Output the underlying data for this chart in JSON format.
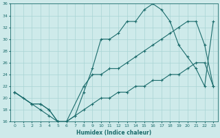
{
  "xlabel": "Humidex (Indice chaleur)",
  "ylabel": "",
  "bg_color": "#ceeaea",
  "grid_color": "#a8d4d4",
  "line_color": "#1a6b6b",
  "xlim": [
    -0.5,
    23.5
  ],
  "ylim": [
    16,
    36
  ],
  "xticks": [
    0,
    1,
    2,
    3,
    4,
    5,
    6,
    7,
    8,
    9,
    10,
    11,
    12,
    13,
    14,
    15,
    16,
    17,
    18,
    19,
    20,
    21,
    22,
    23
  ],
  "yticks": [
    16,
    18,
    20,
    22,
    24,
    26,
    28,
    30,
    32,
    34,
    36
  ],
  "curve1_x": [
    0,
    1,
    2,
    3,
    4,
    5,
    6,
    7,
    8,
    9,
    10,
    11,
    12,
    13,
    14,
    15,
    16,
    17,
    18,
    19,
    20,
    21,
    22,
    23
  ],
  "curve1_y": [
    21,
    20,
    19,
    18,
    17,
    16,
    16,
    17,
    21,
    25,
    30,
    30,
    31,
    33,
    33,
    35,
    36,
    35,
    33,
    29,
    27,
    25,
    22,
    33
  ],
  "curve2_x": [
    0,
    2,
    3,
    4,
    5,
    6,
    8,
    9,
    10,
    11,
    12,
    13,
    14,
    15,
    16,
    17,
    18,
    19,
    20,
    21,
    22,
    23
  ],
  "curve2_y": [
    21,
    19,
    19,
    18,
    16,
    16,
    22,
    24,
    24,
    25,
    25,
    26,
    27,
    28,
    29,
    30,
    31,
    32,
    33,
    33,
    29,
    22
  ],
  "curve3_x": [
    0,
    2,
    3,
    4,
    5,
    6,
    7,
    8,
    9,
    10,
    11,
    12,
    13,
    14,
    15,
    16,
    17,
    18,
    19,
    20,
    21,
    22,
    23
  ],
  "curve3_y": [
    21,
    19,
    19,
    18,
    16,
    16,
    17,
    18,
    19,
    20,
    20,
    21,
    21,
    22,
    22,
    23,
    23,
    24,
    24,
    25,
    26,
    26,
    22
  ]
}
